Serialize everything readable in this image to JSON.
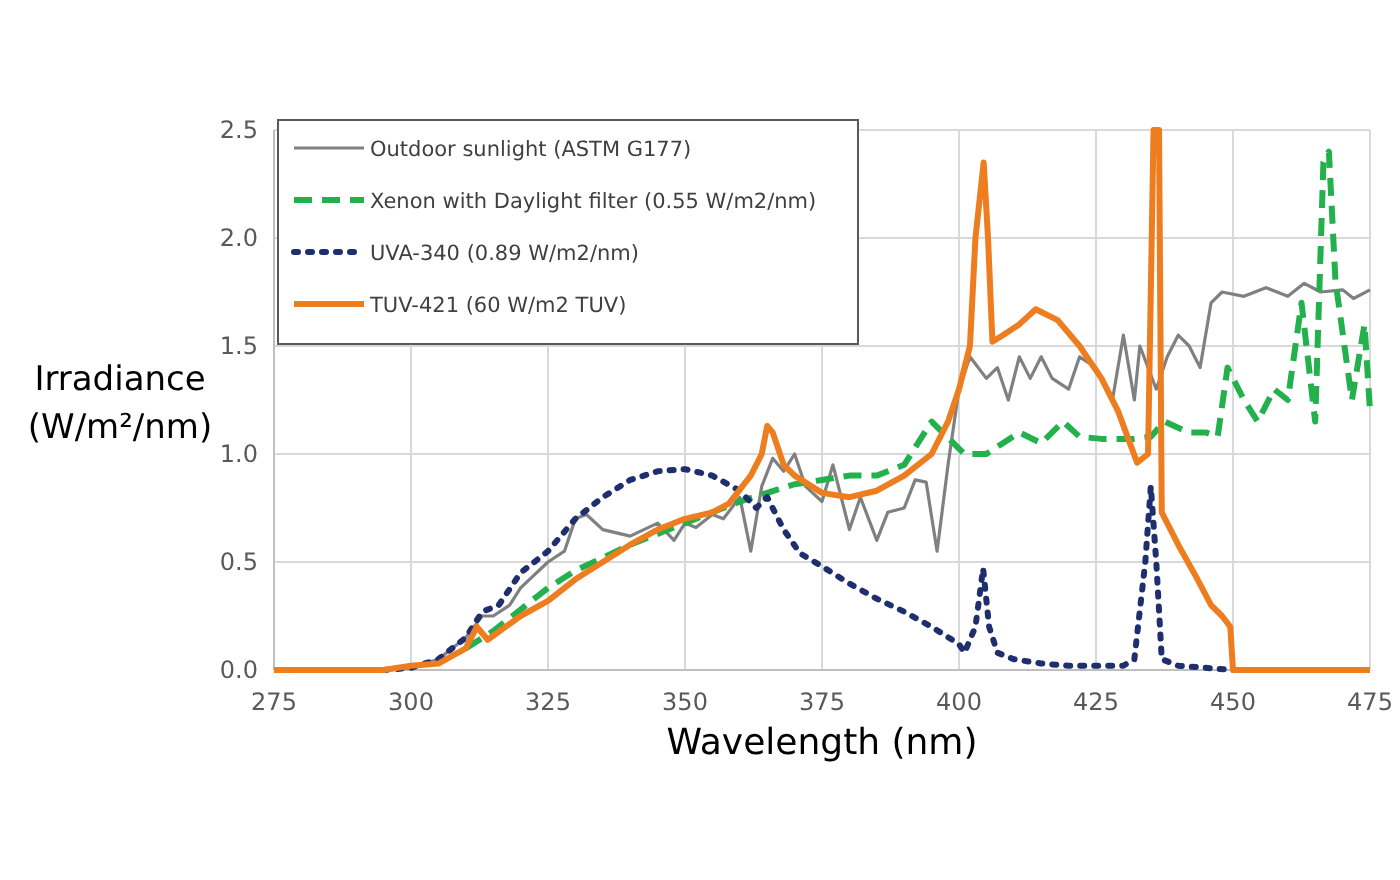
{
  "chart_data": {
    "type": "line",
    "xlabel": "Wavelength (nm)",
    "ylabel": "Irradiance (W/m²/nm)",
    "xlim": [
      275,
      475
    ],
    "ylim": [
      0,
      2.5
    ],
    "xticks": [
      275,
      300,
      325,
      350,
      375,
      400,
      425,
      450,
      475
    ],
    "yticks": [
      {
        "value": 0,
        "label": "0.0"
      },
      {
        "value": 0.5,
        "label": "0.5"
      },
      {
        "value": 1,
        "label": "1.0"
      },
      {
        "value": 1.5,
        "label": "1.5"
      },
      {
        "value": 2,
        "label": "2.0"
      },
      {
        "value": 2.5,
        "label": "2.5"
      }
    ],
    "grid": true,
    "legend": "top left",
    "series": [
      {
        "name": "Outdoor sunlight (ASTM G177)",
        "color": "#808080",
        "line_style": "solid",
        "x": [
          295,
          300,
          305,
          310,
          313,
          315,
          318,
          320,
          325,
          328,
          330,
          332,
          335,
          340,
          345,
          348,
          350,
          352,
          355,
          357,
          360,
          362,
          364,
          366,
          368,
          370,
          372,
          375,
          377,
          380,
          382,
          385,
          387,
          390,
          392,
          394,
          396,
          398,
          400,
          402,
          405,
          407,
          409,
          411,
          413,
          415,
          417,
          420,
          422,
          425,
          428,
          430,
          432,
          433,
          436,
          438,
          440,
          442,
          444,
          446,
          448,
          452,
          456,
          460,
          463,
          466,
          470,
          472,
          475
        ],
        "values": [
          0,
          0.01,
          0.05,
          0.15,
          0.25,
          0.25,
          0.3,
          0.38,
          0.5,
          0.55,
          0.7,
          0.72,
          0.65,
          0.62,
          0.68,
          0.6,
          0.68,
          0.66,
          0.72,
          0.7,
          0.8,
          0.55,
          0.85,
          0.98,
          0.92,
          1.0,
          0.85,
          0.78,
          0.95,
          0.65,
          0.8,
          0.6,
          0.73,
          0.75,
          0.88,
          0.87,
          0.55,
          0.95,
          1.3,
          1.45,
          1.35,
          1.4,
          1.25,
          1.45,
          1.35,
          1.45,
          1.35,
          1.3,
          1.45,
          1.4,
          1.25,
          1.55,
          1.25,
          1.5,
          1.3,
          1.45,
          1.55,
          1.5,
          1.4,
          1.7,
          1.75,
          1.73,
          1.77,
          1.73,
          1.79,
          1.75,
          1.76,
          1.72,
          1.76
        ]
      },
      {
        "name": "Xenon with Daylight filter (0.55 W/m2/nm)",
        "color": "#22b14c",
        "line_style": "dashed",
        "x": [
          310,
          315,
          320,
          325,
          330,
          335,
          340,
          345,
          350,
          355,
          360,
          365,
          370,
          375,
          380,
          385,
          390,
          395,
          397,
          401,
          405,
          408,
          411,
          415,
          419,
          422,
          426,
          432,
          435,
          437.5,
          441.8,
          445,
          447.2,
          449,
          452,
          454.5,
          457.5,
          460,
          462.5,
          465,
          466.5,
          467.5,
          468.7,
          471.7,
          474,
          475
        ],
        "values": [
          0.1,
          0.18,
          0.28,
          0.38,
          0.46,
          0.52,
          0.58,
          0.63,
          0.68,
          0.73,
          0.78,
          0.82,
          0.86,
          0.88,
          0.9,
          0.9,
          0.95,
          1.15,
          1.1,
          1.0,
          1.0,
          1.05,
          1.1,
          1.05,
          1.15,
          1.08,
          1.07,
          1.07,
          1.08,
          1.15,
          1.1,
          1.1,
          1.08,
          1.4,
          1.25,
          1.15,
          1.3,
          1.25,
          1.7,
          1.15,
          2.35,
          2.4,
          1.8,
          1.25,
          1.6,
          1.2
        ]
      },
      {
        "name": "UVA-340 (0.89 W/m2/nm)",
        "color": "#1f2f6e",
        "line_style": "dotted",
        "x": [
          295,
          300,
          305,
          310,
          313,
          316,
          320,
          325,
          330,
          335,
          340,
          345,
          350,
          355,
          360,
          363,
          365,
          368,
          371,
          375,
          380,
          385,
          390,
          395,
          400,
          401,
          403,
          404.4,
          405.5,
          407,
          410,
          415,
          420,
          425,
          430,
          432,
          434,
          435,
          436,
          437,
          440,
          445,
          450
        ],
        "values": [
          0,
          0.01,
          0.05,
          0.15,
          0.27,
          0.3,
          0.45,
          0.55,
          0.7,
          0.8,
          0.88,
          0.92,
          0.93,
          0.9,
          0.83,
          0.75,
          0.8,
          0.65,
          0.54,
          0.48,
          0.4,
          0.33,
          0.27,
          0.2,
          0.12,
          0.08,
          0.2,
          0.47,
          0.2,
          0.08,
          0.05,
          0.03,
          0.02,
          0.02,
          0.02,
          0.05,
          0.5,
          0.85,
          0.5,
          0.05,
          0.02,
          0.01,
          0
        ]
      },
      {
        "name": "TUV-421 (60 W/m2 TUV)",
        "color": "#ed7d1f",
        "line_style": "solid",
        "x": [
          275,
          295,
          300,
          305,
          310,
          312,
          314,
          320,
          325,
          330,
          335,
          340,
          345,
          350,
          355,
          358,
          362,
          364,
          365,
          366,
          368,
          370,
          375,
          380,
          385,
          390,
          395,
          398,
          400,
          402,
          403,
          404.5,
          405.3,
          406.1,
          408,
          411,
          414,
          418,
          422,
          426,
          429,
          432.5,
          434.5,
          435.5,
          436.5,
          437,
          440,
          443.3,
          446,
          448,
          449.5,
          450,
          475
        ],
        "values": [
          0,
          0,
          0.02,
          0.03,
          0.1,
          0.2,
          0.14,
          0.25,
          0.32,
          0.42,
          0.5,
          0.58,
          0.65,
          0.7,
          0.73,
          0.77,
          0.9,
          1.0,
          1.13,
          1.1,
          0.95,
          0.9,
          0.82,
          0.8,
          0.83,
          0.9,
          1.0,
          1.15,
          1.3,
          1.5,
          2.0,
          2.35,
          2.0,
          1.52,
          1.55,
          1.6,
          1.67,
          1.62,
          1.5,
          1.35,
          1.2,
          0.96,
          1.0,
          2.5,
          2.5,
          0.73,
          0.58,
          0.43,
          0.3,
          0.25,
          0.2,
          0,
          0
        ]
      }
    ]
  }
}
